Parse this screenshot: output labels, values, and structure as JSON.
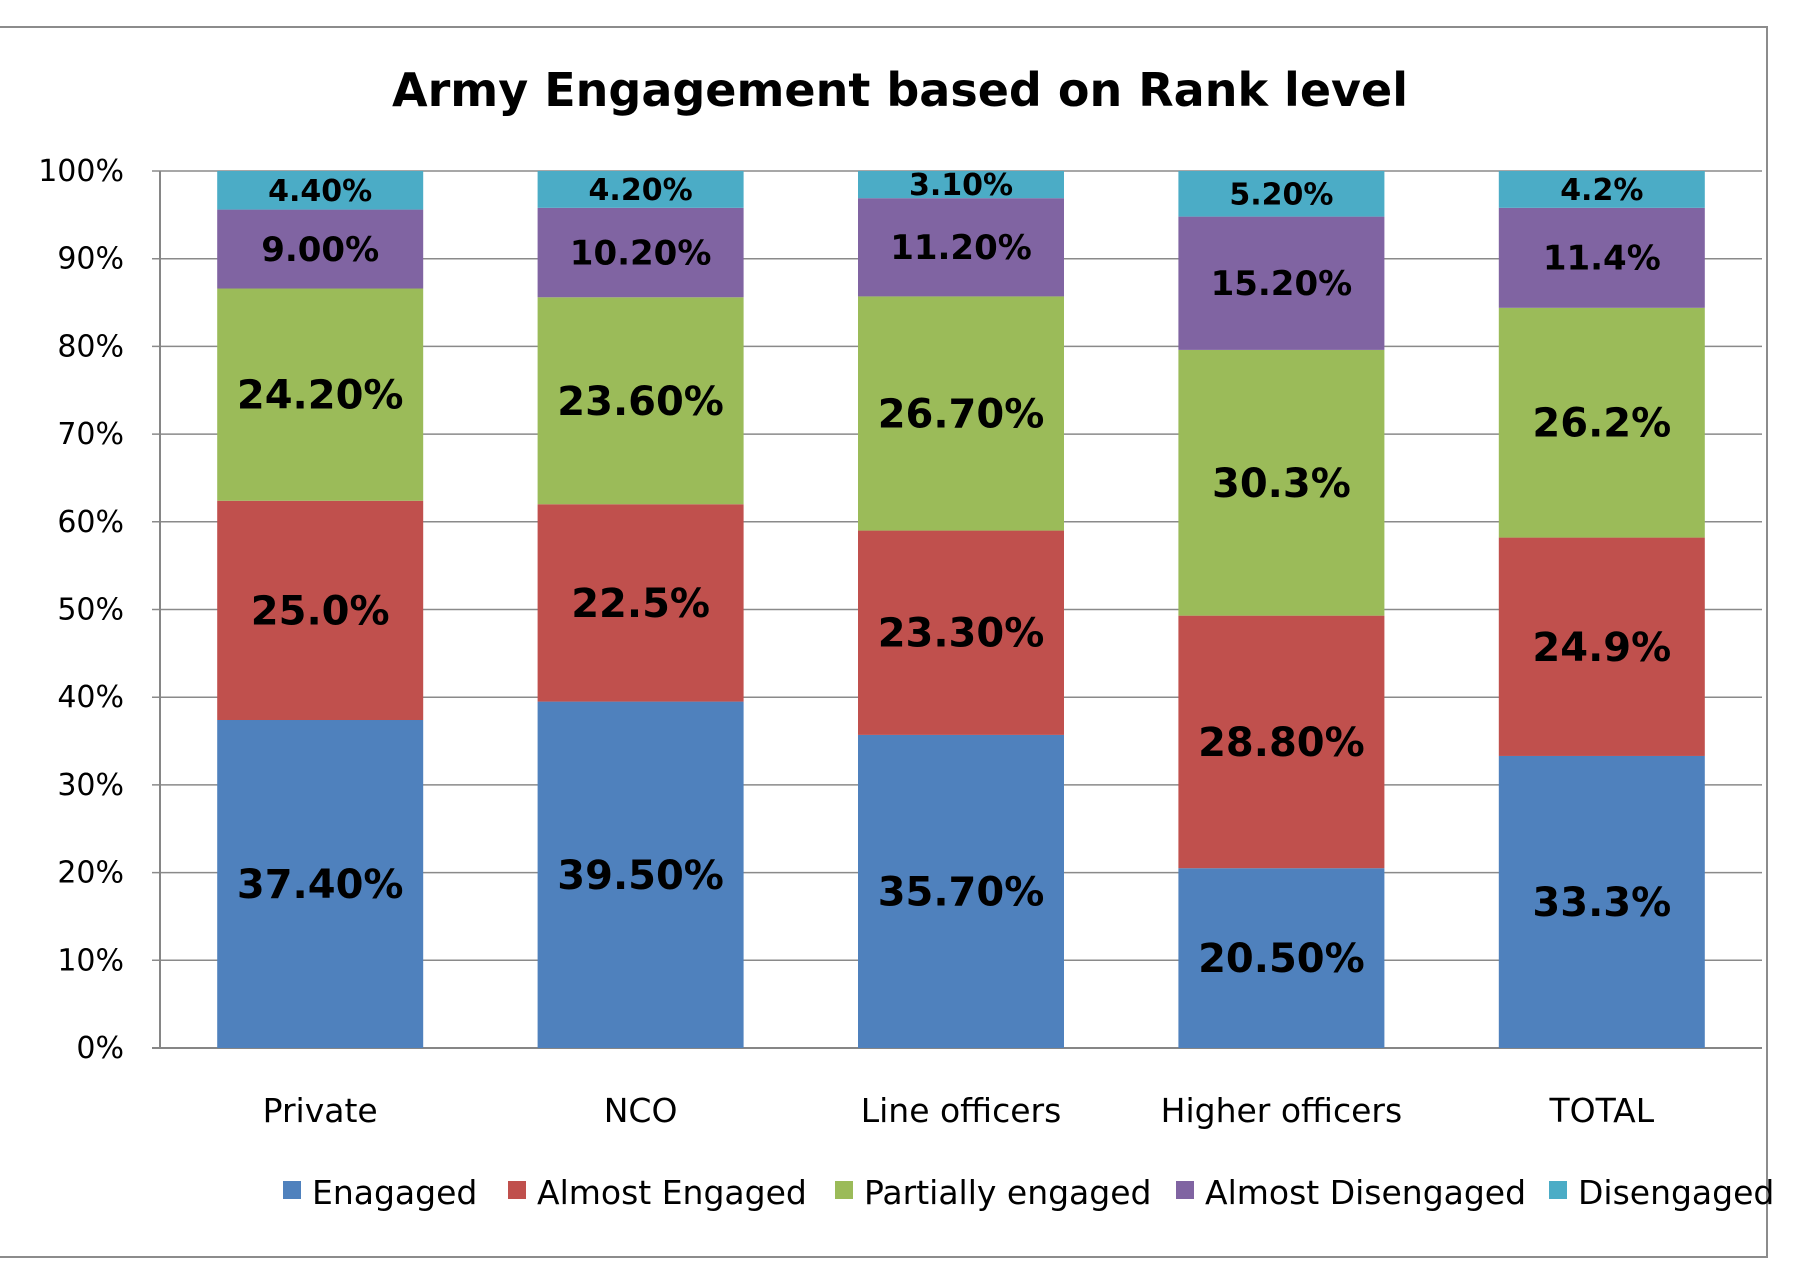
{
  "chart_data": {
    "type": "bar",
    "stacked": true,
    "percent": true,
    "title": "Army Engagement based on Rank level",
    "xlabel": "",
    "ylabel": "",
    "ylim": [
      0,
      100
    ],
    "yticks": [
      "0%",
      "10%",
      "20%",
      "30%",
      "40%",
      "50%",
      "60%",
      "70%",
      "80%",
      "90%",
      "100%"
    ],
    "grid": true,
    "legend_position": "bottom",
    "categories": [
      "Private",
      "NCO",
      "Line officers",
      "Higher officers",
      "TOTAL"
    ],
    "series": [
      {
        "name": "Enagaged",
        "color": "#4f81bd",
        "values": [
          37.4,
          39.5,
          35.7,
          20.5,
          33.3
        ],
        "labels": [
          "37.40%",
          "39.50%",
          "35.70%",
          "20.50%",
          "33.3%"
        ]
      },
      {
        "name": "Almost Engaged",
        "color": "#c0504d",
        "values": [
          25.0,
          22.5,
          23.3,
          28.8,
          24.9
        ],
        "labels": [
          "25.0%",
          "22.5%",
          "23.30%",
          "28.80%",
          "24.9%"
        ]
      },
      {
        "name": "Partially engaged",
        "color": "#9bbb59",
        "values": [
          24.2,
          23.6,
          26.7,
          30.3,
          26.2
        ],
        "labels": [
          "24.20%",
          "23.60%",
          "26.70%",
          "30.3%",
          "26.2%"
        ]
      },
      {
        "name": "Almost Disengaged",
        "color": "#8064a2",
        "values": [
          9.0,
          10.2,
          11.2,
          15.2,
          11.4
        ],
        "labels": [
          "9.00%",
          "10.20%",
          "11.20%",
          "15.20%",
          "11.4%"
        ]
      },
      {
        "name": "Disengaged",
        "color": "#4bacc6",
        "values": [
          4.4,
          4.2,
          3.1,
          5.2,
          4.2
        ],
        "labels": [
          "4.40%",
          "4.20%",
          "3.10%",
          "5.20%",
          "4.2%"
        ]
      }
    ]
  }
}
